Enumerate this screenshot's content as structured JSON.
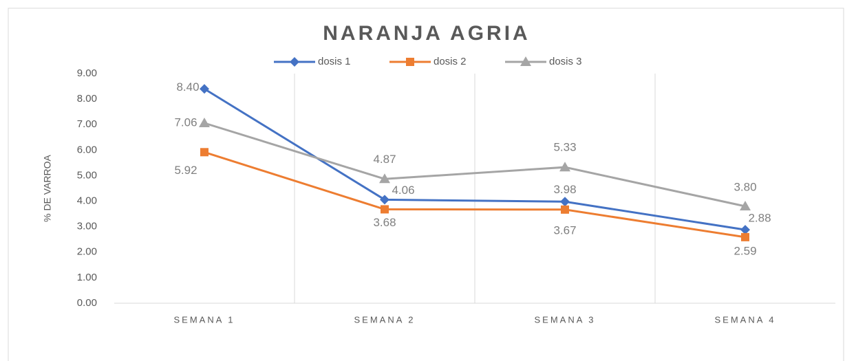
{
  "chart_data": {
    "type": "line",
    "title": "NARANJA AGRIA",
    "y_label": "% DE VARROA",
    "categories": [
      "SEMANA 1",
      "SEMANA 2",
      "SEMANA 3",
      "SEMANA 4"
    ],
    "series": [
      {
        "name": "dosis 1",
        "color": "#4472c4",
        "marker": "diamond",
        "values": [
          8.4,
          4.06,
          3.98,
          2.88
        ],
        "value_labels": [
          "8.40",
          "4.06",
          "3.98",
          "2.88"
        ]
      },
      {
        "name": "dosis 2",
        "color": "#ed7d31",
        "marker": "square",
        "values": [
          5.92,
          3.68,
          3.67,
          2.59
        ],
        "value_labels": [
          "5.92",
          "3.68",
          "3.67",
          "2.59"
        ]
      },
      {
        "name": "dosis 3",
        "color": "#a5a5a5",
        "marker": "triangle",
        "values": [
          7.06,
          4.87,
          5.33,
          3.8
        ],
        "value_labels": [
          "7.06",
          "4.87",
          "5.33",
          "3.80"
        ]
      }
    ],
    "ylim": [
      0,
      9
    ],
    "yticks": [
      {
        "value": 0,
        "label": "0.00"
      },
      {
        "value": 1,
        "label": "1.00"
      },
      {
        "value": 2,
        "label": "2.00"
      },
      {
        "value": 3,
        "label": "3.00"
      },
      {
        "value": 4,
        "label": "4.00"
      },
      {
        "value": 5,
        "label": "5.00"
      },
      {
        "value": 6,
        "label": "6.00"
      },
      {
        "value": 7,
        "label": "7.00"
      },
      {
        "value": 8,
        "label": "8.00"
      },
      {
        "value": 9,
        "label": "9.00"
      }
    ],
    "legend": "top",
    "grid": "vertical-category"
  }
}
